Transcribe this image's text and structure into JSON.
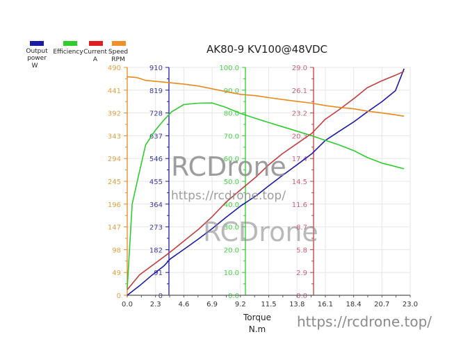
{
  "chart_data": {
    "type": "line",
    "title": "AK80-9 KV100@48VDC",
    "xlabel": "Torque",
    "xunit": "N.m",
    "xlim": [
      0,
      23
    ],
    "xticks": [
      "0.0",
      "2.3",
      "4.6",
      "6.9",
      "9.2",
      "11.5",
      "13.8",
      "16.1",
      "18.4",
      "20.7",
      "23.0"
    ],
    "grid": true,
    "legend_position": "top-left",
    "axes": [
      {
        "name": "Output power",
        "unit": "W",
        "color": "#1a1aa6",
        "ylim": [
          0,
          910
        ],
        "ticks": [
          "0",
          "91",
          "182",
          "273",
          "364",
          "455",
          "546",
          "637",
          "728",
          "819",
          "910"
        ]
      },
      {
        "name": "Efficiency",
        "unit": "",
        "color": "#2ecc2e",
        "ylim": [
          0,
          100
        ],
        "ticks": [
          "0.0",
          "10.0",
          "20.0",
          "30.0",
          "40.0",
          "50.0",
          "60.0",
          "70.0",
          "80.0",
          "90.0",
          "100.0"
        ]
      },
      {
        "name": "Current",
        "unit": "A",
        "color": "#c23c3c",
        "ylim": [
          0,
          29
        ],
        "ticks": [
          "0.0",
          "2.9",
          "5.8",
          "8.7",
          "11.6",
          "14.5",
          "17.4",
          "20.3",
          "23.2",
          "26.1",
          "29.0"
        ]
      },
      {
        "name": "Speed",
        "unit": "RPM",
        "color": "#e8891c",
        "ylim": [
          0,
          490
        ],
        "ticks": [
          "0",
          "49",
          "98",
          "147",
          "196",
          "245",
          "294",
          "343",
          "392",
          "441",
          "490"
        ]
      }
    ],
    "series": [
      {
        "name": "Output power",
        "axis": 0,
        "color": "#1a1aa6",
        "x": [
          0.0,
          1.0,
          2.0,
          3.0,
          3.5,
          4.6,
          5.8,
          6.9,
          8.0,
          9.2,
          10.5,
          11.5,
          12.6,
          13.8,
          15.0,
          16.1,
          17.2,
          18.4,
          19.5,
          20.7,
          21.8,
          22.5
        ],
        "y": [
          0,
          38,
          80,
          118,
          145,
          183,
          225,
          266,
          310,
          356,
          398,
          437,
          478,
          521,
          565,
          618,
          654,
          692,
          732,
          773,
          817,
          905
        ]
      },
      {
        "name": "Efficiency",
        "axis": 1,
        "color": "#2ecc2e",
        "x": [
          0.0,
          0.4,
          0.9,
          1.5,
          2.3,
          3.0,
          3.6,
          4.6,
          5.8,
          6.9,
          8.0,
          9.2,
          10.5,
          11.5,
          12.6,
          13.8,
          15.0,
          16.1,
          17.2,
          18.4,
          19.5,
          20.7,
          21.8,
          22.5
        ],
        "y": [
          3,
          40,
          52,
          66,
          72.5,
          77,
          80.5,
          83.7,
          84.3,
          84.4,
          82.5,
          79.8,
          77.5,
          75.8,
          74,
          72,
          70,
          68,
          66,
          63.5,
          60.5,
          58,
          56.5,
          55.5
        ]
      },
      {
        "name": "Current",
        "axis": 2,
        "color": "#c23c3c",
        "x": [
          0.0,
          1.0,
          2.3,
          3.5,
          4.6,
          5.8,
          6.9,
          8.0,
          9.2,
          10.5,
          11.5,
          12.6,
          13.8,
          15.0,
          16.1,
          17.2,
          18.4,
          19.5,
          20.7,
          21.8,
          22.5
        ],
        "y": [
          0.7,
          2.6,
          4.1,
          5.5,
          6.9,
          8.4,
          10.0,
          11.8,
          13.4,
          15.1,
          16.6,
          18.0,
          19.3,
          20.6,
          22.4,
          23.6,
          25.0,
          26.4,
          27.3,
          28.0,
          28.5
        ]
      },
      {
        "name": "Speed",
        "axis": 3,
        "color": "#e8891c",
        "x": [
          0.0,
          0.8,
          1.5,
          2.3,
          3.5,
          4.6,
          5.8,
          6.9,
          8.0,
          9.2,
          10.5,
          11.5,
          12.6,
          13.8,
          15.0,
          16.1,
          17.2,
          18.4,
          19.5,
          20.7,
          21.8,
          22.5
        ],
        "y": [
          470,
          468,
          462,
          460,
          457,
          454,
          450,
          444,
          438,
          432,
          429,
          425,
          421,
          417,
          413,
          408,
          404,
          401,
          396,
          392,
          388,
          385
        ]
      }
    ]
  },
  "title": "AK80-9 KV100@48VDC",
  "legend": [
    {
      "label": "Output power",
      "sub": "W",
      "color": "#1a1aa6"
    },
    {
      "label": "Efficiency",
      "sub": "",
      "color": "#2ecc2e"
    },
    {
      "label": "Current",
      "sub": "A",
      "color": "#e02020"
    },
    {
      "label": "Speed",
      "sub": "RPM",
      "color": "#f0902a"
    }
  ],
  "x_axis": {
    "label": "Torque",
    "unit": "N.m"
  },
  "watermarks": [
    "RCDrone",
    "https://rcdrone.top/",
    "RCDrone",
    "https://rcdrone.top/"
  ]
}
